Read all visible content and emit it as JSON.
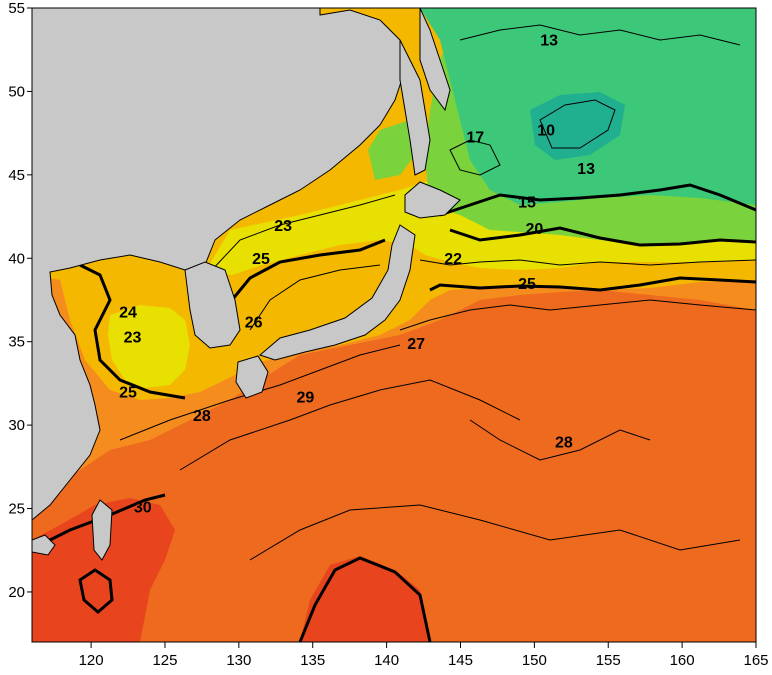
{
  "map": {
    "kind": "sea-surface-temperature-contour-map",
    "extent": {
      "lon": [
        116,
        165
      ],
      "lat": [
        17,
        55
      ]
    },
    "x_ticks": [
      "120",
      "125",
      "130",
      "135",
      "140",
      "145",
      "150",
      "155",
      "160",
      "165"
    ],
    "y_ticks": [
      "55",
      "50",
      "45",
      "40",
      "35",
      "30",
      "25",
      "20"
    ],
    "x_tick_values": [
      120,
      125,
      130,
      135,
      140,
      145,
      150,
      155,
      160,
      165
    ],
    "y_tick_values": [
      55,
      50,
      45,
      40,
      35,
      30,
      25,
      20
    ],
    "land_color": "#c8c8c8",
    "colors": {
      "cold": "#3cc878",
      "cool": "#7ad23c",
      "mild": "#e8e000",
      "warm": "#f5b800",
      "orange": "#f58c1e",
      "hot": "#ee6a1e",
      "hottest": "#e8441e"
    },
    "contour_labels": [
      {
        "text": "13",
        "lon": 151.0,
        "lat": 53.0
      },
      {
        "text": "13",
        "lon": 153.5,
        "lat": 45.3
      },
      {
        "text": "10",
        "lon": 150.8,
        "lat": 47.6
      },
      {
        "text": "17",
        "lon": 146.0,
        "lat": 47.2
      },
      {
        "text": "15",
        "lon": 149.5,
        "lat": 43.3
      },
      {
        "text": "20",
        "lon": 150.0,
        "lat": 41.7
      },
      {
        "text": "22",
        "lon": 144.5,
        "lat": 39.9
      },
      {
        "text": "25",
        "lon": 149.5,
        "lat": 38.4
      },
      {
        "text": "23",
        "lon": 133.0,
        "lat": 41.9
      },
      {
        "text": "25",
        "lon": 131.5,
        "lat": 39.9
      },
      {
        "text": "26",
        "lon": 131.0,
        "lat": 36.1
      },
      {
        "text": "27",
        "lon": 142.0,
        "lat": 34.8
      },
      {
        "text": "24",
        "lon": 122.5,
        "lat": 36.7
      },
      {
        "text": "23",
        "lon": 122.8,
        "lat": 35.2
      },
      {
        "text": "25",
        "lon": 122.5,
        "lat": 31.9
      },
      {
        "text": "28",
        "lon": 127.5,
        "lat": 30.5
      },
      {
        "text": "29",
        "lon": 134.5,
        "lat": 31.6
      },
      {
        "text": "28",
        "lon": 152.0,
        "lat": 28.9
      },
      {
        "text": "30",
        "lon": 123.5,
        "lat": 25.0
      }
    ]
  }
}
